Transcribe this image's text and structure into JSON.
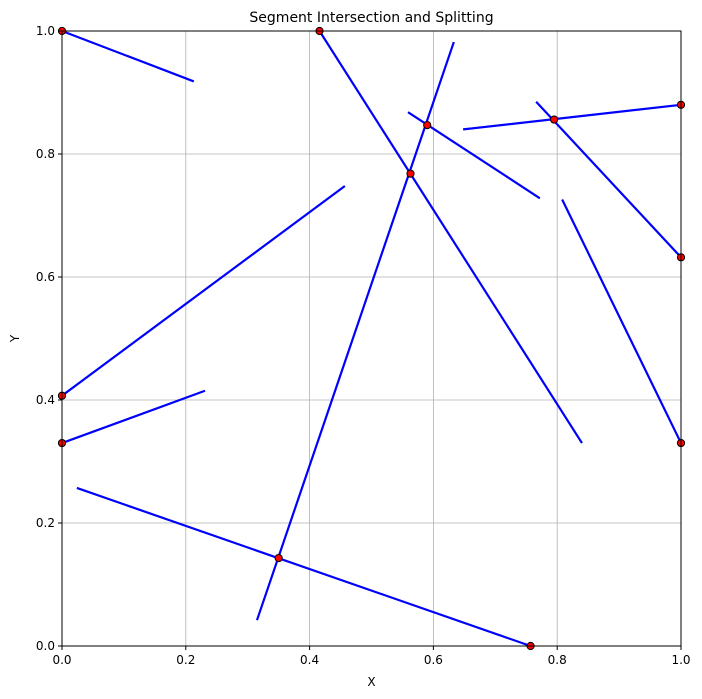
{
  "chart_data": {
    "type": "line",
    "title": "Segment Intersection and Splitting",
    "xlabel": "X",
    "ylabel": "Y",
    "xlim": [
      0,
      1
    ],
    "ylim": [
      0,
      1
    ],
    "x_ticks": [
      "0.0",
      "0.2",
      "0.4",
      "0.6",
      "0.8",
      "1.0"
    ],
    "y_ticks": [
      "0.0",
      "0.2",
      "0.4",
      "0.6",
      "0.8",
      "1.0"
    ],
    "grid": true,
    "legend": "none",
    "colors": {
      "segment": "#0000ff",
      "point_fill": "#ff0000",
      "point_edge": "#000000",
      "grid": "#b0b0b0"
    },
    "segments": [
      {
        "x": [
          0.0,
          0.213
        ],
        "y": [
          1.0,
          0.918
        ]
      },
      {
        "x": [
          0.416,
          0.84
        ],
        "y": [
          1.0,
          0.33
        ]
      },
      {
        "x": [
          0.315,
          0.633
        ],
        "y": [
          0.042,
          0.982
        ]
      },
      {
        "x": [
          0.559,
          0.772
        ],
        "y": [
          0.868,
          0.728
        ]
      },
      {
        "x": [
          0.648,
          1.0
        ],
        "y": [
          0.84,
          0.88
        ]
      },
      {
        "x": [
          0.766,
          1.0
        ],
        "y": [
          0.885,
          0.632
        ]
      },
      {
        "x": [
          0.808,
          1.0
        ],
        "y": [
          0.726,
          0.33
        ]
      },
      {
        "x": [
          0.0,
          0.457
        ],
        "y": [
          0.407,
          0.748
        ]
      },
      {
        "x": [
          0.0,
          0.231
        ],
        "y": [
          0.33,
          0.415
        ]
      },
      {
        "x": [
          0.024,
          0.757
        ],
        "y": [
          0.257,
          0.0
        ]
      }
    ],
    "points": [
      {
        "x": 0.0,
        "y": 1.0
      },
      {
        "x": 0.416,
        "y": 1.0
      },
      {
        "x": 0.59,
        "y": 0.847
      },
      {
        "x": 0.563,
        "y": 0.768
      },
      {
        "x": 0.795,
        "y": 0.856
      },
      {
        "x": 1.0,
        "y": 0.88
      },
      {
        "x": 1.0,
        "y": 0.632
      },
      {
        "x": 0.0,
        "y": 0.407
      },
      {
        "x": 0.0,
        "y": 0.33
      },
      {
        "x": 1.0,
        "y": 0.33
      },
      {
        "x": 0.35,
        "y": 0.143
      },
      {
        "x": 0.757,
        "y": 0.0
      }
    ]
  }
}
